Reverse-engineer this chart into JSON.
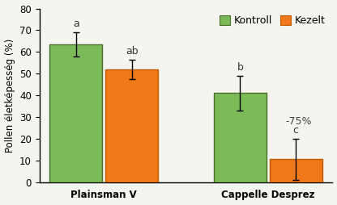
{
  "groups": [
    "Plainsman V",
    "Cappelle Desprez"
  ],
  "bar_labels": [
    "Kontroll",
    "Kezelt"
  ],
  "values": [
    [
      63.5,
      52.0
    ],
    [
      41.0,
      10.5
    ]
  ],
  "errors": [
    [
      5.5,
      4.5
    ],
    [
      8.0,
      9.5
    ]
  ],
  "bar_colors": [
    "#7aba57",
    "#f07818"
  ],
  "bar_edgecolors": [
    "#4a6e28",
    "#c05a00"
  ],
  "letters": [
    [
      "a",
      "ab"
    ],
    [
      "b",
      "c"
    ]
  ],
  "annotation": "-75%",
  "annotation_group": 1,
  "annotation_bar": 1,
  "ylabel": "Pollen életképesség (%)",
  "ylim": [
    0,
    80
  ],
  "yticks": [
    0,
    10,
    20,
    30,
    40,
    50,
    60,
    70,
    80
  ],
  "legend_labels": [
    "Kontroll",
    "Kezelt"
  ],
  "legend_colors": [
    "#7aba57",
    "#f07818"
  ],
  "legend_edgecolors": [
    "#4a6e28",
    "#c05a00"
  ],
  "group_centers": [
    0.22,
    0.78
  ],
  "bar_width": 0.18,
  "letter_fontsize": 9,
  "axis_fontsize": 8.5,
  "tick_fontsize": 8.5,
  "legend_fontsize": 9,
  "annotation_color": "#444444"
}
